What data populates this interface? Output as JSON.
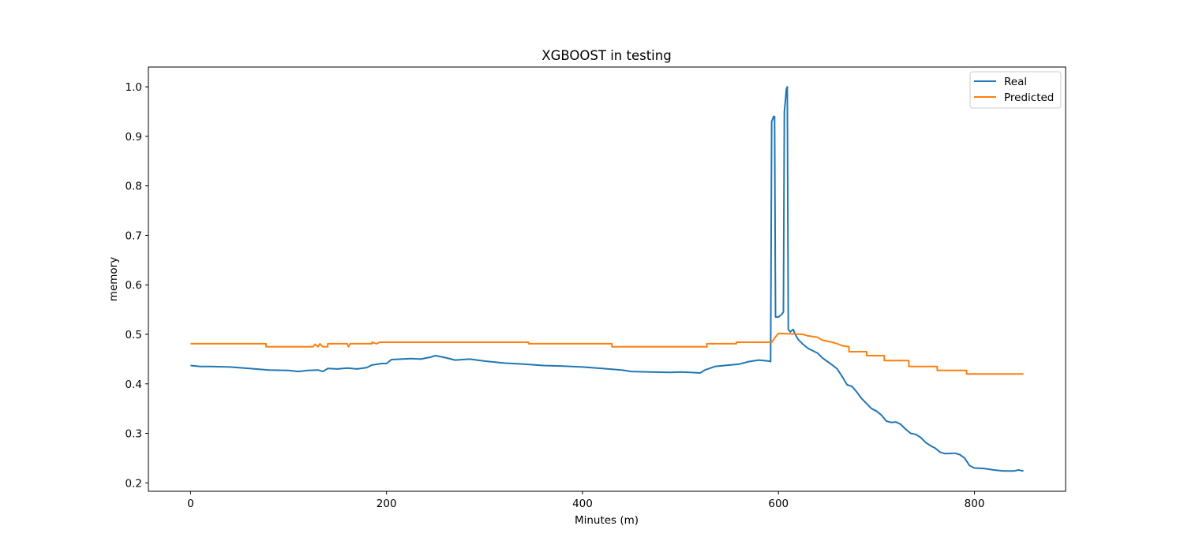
{
  "chart_data": {
    "type": "line",
    "title": "XGBOOST in testing",
    "xlabel": "Minutes (m)",
    "ylabel": "memory",
    "xlim": [
      -43,
      893
    ],
    "ylim": [
      0.183,
      1.04
    ],
    "xticks": [
      0,
      200,
      400,
      600,
      800
    ],
    "xtick_labels": [
      "0",
      "200",
      "400",
      "600",
      "800"
    ],
    "yticks": [
      0.2,
      0.3,
      0.4,
      0.5,
      0.6,
      0.7,
      0.8,
      0.9,
      1.0
    ],
    "ytick_labels": [
      "0.2",
      "0.3",
      "0.4",
      "0.5",
      "0.6",
      "0.7",
      "0.8",
      "0.9",
      "1.0"
    ],
    "grid": false,
    "legend_position": "top-right",
    "series": [
      {
        "name": "Real",
        "color": "#1f77b4",
        "points": [
          [
            0,
            0.437
          ],
          [
            10,
            0.435
          ],
          [
            20,
            0.435
          ],
          [
            40,
            0.434
          ],
          [
            60,
            0.431
          ],
          [
            80,
            0.428
          ],
          [
            100,
            0.427
          ],
          [
            110,
            0.425
          ],
          [
            120,
            0.427
          ],
          [
            130,
            0.428
          ],
          [
            135,
            0.425
          ],
          [
            140,
            0.431
          ],
          [
            150,
            0.43
          ],
          [
            160,
            0.432
          ],
          [
            170,
            0.43
          ],
          [
            180,
            0.433
          ],
          [
            185,
            0.438
          ],
          [
            195,
            0.441
          ],
          [
            200,
            0.441
          ],
          [
            205,
            0.449
          ],
          [
            215,
            0.45
          ],
          [
            225,
            0.451
          ],
          [
            235,
            0.45
          ],
          [
            245,
            0.454
          ],
          [
            250,
            0.457
          ],
          [
            260,
            0.453
          ],
          [
            270,
            0.448
          ],
          [
            285,
            0.45
          ],
          [
            300,
            0.446
          ],
          [
            320,
            0.442
          ],
          [
            340,
            0.44
          ],
          [
            360,
            0.437
          ],
          [
            380,
            0.436
          ],
          [
            400,
            0.434
          ],
          [
            420,
            0.431
          ],
          [
            440,
            0.428
          ],
          [
            450,
            0.425
          ],
          [
            470,
            0.424
          ],
          [
            490,
            0.423
          ],
          [
            500,
            0.424
          ],
          [
            510,
            0.423
          ],
          [
            520,
            0.422
          ],
          [
            525,
            0.428
          ],
          [
            535,
            0.435
          ],
          [
            545,
            0.437
          ],
          [
            560,
            0.44
          ],
          [
            570,
            0.445
          ],
          [
            580,
            0.448
          ],
          [
            590,
            0.446
          ],
          [
            592,
            0.445
          ],
          [
            593,
            0.93
          ],
          [
            595,
            0.94
          ],
          [
            596,
            0.94
          ],
          [
            597,
            0.535
          ],
          [
            600,
            0.535
          ],
          [
            603,
            0.54
          ],
          [
            604,
            0.542
          ],
          [
            605,
            0.545
          ],
          [
            606,
            0.95
          ],
          [
            607,
            0.97
          ],
          [
            608,
            0.995
          ],
          [
            609,
            1.0
          ],
          [
            610,
            0.51
          ],
          [
            612,
            0.505
          ],
          [
            615,
            0.51
          ],
          [
            617,
            0.5
          ],
          [
            620,
            0.49
          ],
          [
            625,
            0.48
          ],
          [
            630,
            0.472
          ],
          [
            640,
            0.462
          ],
          [
            645,
            0.452
          ],
          [
            650,
            0.445
          ],
          [
            655,
            0.438
          ],
          [
            660,
            0.43
          ],
          [
            665,
            0.415
          ],
          [
            670,
            0.398
          ],
          [
            675,
            0.395
          ],
          [
            680,
            0.383
          ],
          [
            685,
            0.37
          ],
          [
            690,
            0.36
          ],
          [
            695,
            0.35
          ],
          [
            700,
            0.345
          ],
          [
            705,
            0.337
          ],
          [
            710,
            0.325
          ],
          [
            715,
            0.322
          ],
          [
            720,
            0.323
          ],
          [
            725,
            0.318
          ],
          [
            730,
            0.308
          ],
          [
            735,
            0.3
          ],
          [
            740,
            0.298
          ],
          [
            745,
            0.292
          ],
          [
            750,
            0.282
          ],
          [
            755,
            0.275
          ],
          [
            760,
            0.27
          ],
          [
            765,
            0.262
          ],
          [
            770,
            0.259
          ],
          [
            780,
            0.26
          ],
          [
            785,
            0.257
          ],
          [
            790,
            0.25
          ],
          [
            795,
            0.235
          ],
          [
            800,
            0.23
          ],
          [
            810,
            0.229
          ],
          [
            820,
            0.226
          ],
          [
            830,
            0.224
          ],
          [
            840,
            0.224
          ],
          [
            845,
            0.226
          ],
          [
            850,
            0.224
          ]
        ]
      },
      {
        "name": "Predicted",
        "color": "#ff7f0e",
        "points": [
          [
            0,
            0.481
          ],
          [
            77,
            0.481
          ],
          [
            77,
            0.475
          ],
          [
            125,
            0.475
          ],
          [
            127,
            0.48
          ],
          [
            130,
            0.475
          ],
          [
            132,
            0.481
          ],
          [
            135,
            0.475
          ],
          [
            140,
            0.475
          ],
          [
            140,
            0.481
          ],
          [
            160,
            0.481
          ],
          [
            161,
            0.475
          ],
          [
            163,
            0.481
          ],
          [
            185,
            0.481
          ],
          [
            185,
            0.484
          ],
          [
            190,
            0.481
          ],
          [
            193,
            0.484
          ],
          [
            345,
            0.484
          ],
          [
            345,
            0.481
          ],
          [
            430,
            0.481
          ],
          [
            430,
            0.475
          ],
          [
            527,
            0.475
          ],
          [
            527,
            0.481
          ],
          [
            557,
            0.481
          ],
          [
            557,
            0.484
          ],
          [
            593,
            0.484
          ],
          [
            597,
            0.495
          ],
          [
            600,
            0.502
          ],
          [
            625,
            0.5
          ],
          [
            630,
            0.497
          ],
          [
            640,
            0.494
          ],
          [
            645,
            0.488
          ],
          [
            655,
            0.484
          ],
          [
            660,
            0.481
          ],
          [
            665,
            0.477
          ],
          [
            672,
            0.475
          ],
          [
            672,
            0.465
          ],
          [
            690,
            0.465
          ],
          [
            690,
            0.457
          ],
          [
            708,
            0.457
          ],
          [
            708,
            0.447
          ],
          [
            733,
            0.447
          ],
          [
            733,
            0.435
          ],
          [
            762,
            0.435
          ],
          [
            762,
            0.427
          ],
          [
            792,
            0.427
          ],
          [
            792,
            0.42
          ],
          [
            850,
            0.42
          ]
        ]
      }
    ]
  }
}
